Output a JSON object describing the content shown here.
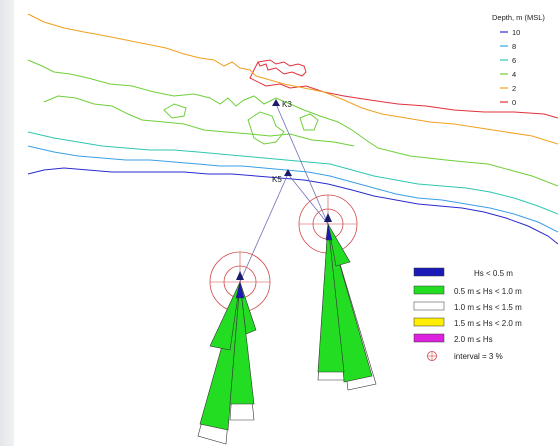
{
  "depth_legend": {
    "title": "Depth, m (MSL)",
    "items": [
      {
        "label": "10",
        "color": "#2b2bcf"
      },
      {
        "label": "8",
        "color": "#3aa0e6"
      },
      {
        "label": "6",
        "color": "#2fc7b0"
      },
      {
        "label": "4",
        "color": "#6fcf3a"
      },
      {
        "label": "2",
        "color": "#f0a020"
      },
      {
        "label": "0",
        "color": "#e0303a"
      }
    ]
  },
  "points": [
    {
      "label": "K3"
    },
    {
      "label": "K5"
    }
  ],
  "hs_legend": {
    "items": [
      {
        "label": "Hs < 0.5 m",
        "color": "#1a1ab8"
      },
      {
        "label": "0.5 m ≤ Hs < 1.0 m",
        "color": "#22dd22"
      },
      {
        "label": "1.0 m ≤ Hs < 1.5 m",
        "color": "#ffffff"
      },
      {
        "label": "1.5 m ≤ Hs < 2.0 m",
        "color": "#ffee00"
      },
      {
        "label": "2.0 m ≤ Hs",
        "color": "#dd22dd"
      }
    ],
    "interval_label": "interval = 3 %"
  },
  "colors": {
    "rose_circle": "#d04848",
    "leader_line": "#7070b8"
  }
}
